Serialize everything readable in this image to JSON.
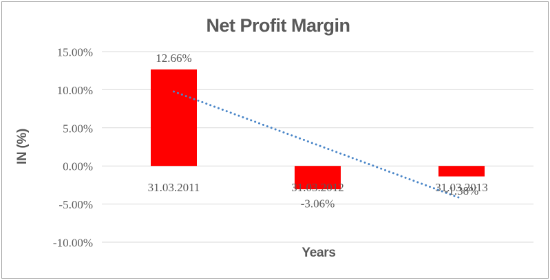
{
  "chart_data": {
    "type": "bar",
    "title": "Net Profit Margin",
    "xlabel": "Years",
    "ylabel": "IN (%)",
    "categories": [
      "31.03.2011",
      "31.03.2012",
      "31.03.2013"
    ],
    "values": [
      12.66,
      -3.06,
      -1.38
    ],
    "data_labels": [
      "12.66%",
      "-3.06%",
      "-1.38%"
    ],
    "ytick_values": [
      15,
      10,
      5,
      0,
      -5,
      -10
    ],
    "ytick_labels": [
      "15.00%",
      "10.00%",
      "5.00%",
      "0.00%",
      "-5.00%",
      "-10.00%"
    ],
    "ylim": [
      -10,
      15
    ],
    "grid": true,
    "legend": "none",
    "bar_color": "#FF0000",
    "gridline_color": "#D9D9D9",
    "text_color": "#595959",
    "trendline": {
      "type": "linear",
      "style": "dotted",
      "color": "#4A86C8",
      "start_value": 9.76,
      "end_value": -4.28
    }
  },
  "colors": {
    "background": "#FFFFFF",
    "frame_border": "#9C9C9C"
  }
}
